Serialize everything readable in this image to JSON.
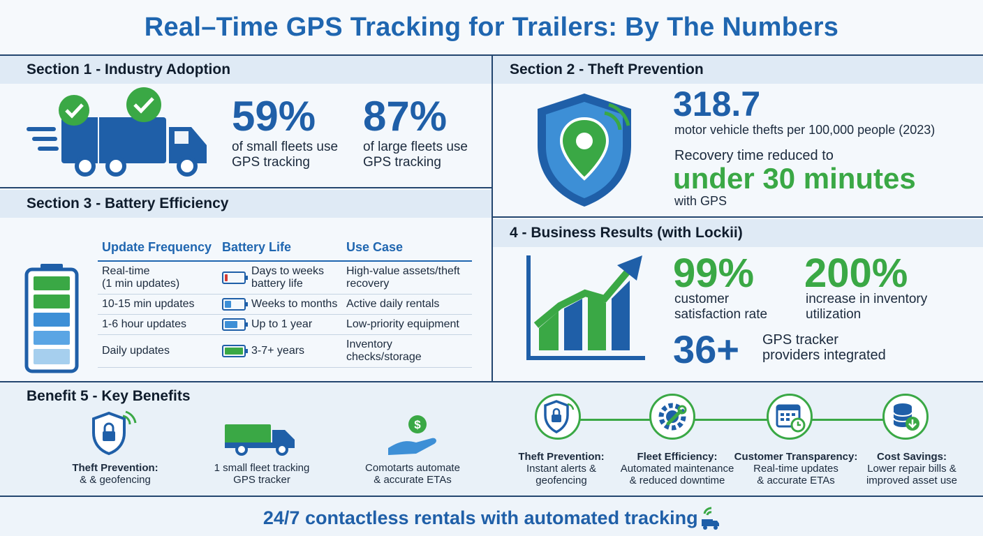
{
  "title": "Real–Time GPS Tracking for Trailers: By The Numbers",
  "section1": {
    "header": "Section 1 - Industry Adoption",
    "stat1": {
      "value": "59%",
      "line1": "of small fleets use",
      "line2": "GPS tracking"
    },
    "stat2": {
      "value": "87%",
      "line1": "of large fleets use",
      "line2": "GPS tracking"
    }
  },
  "section2": {
    "header": "Section 2 - Theft Prevention",
    "stat_value": "318.7",
    "stat_text": "motor vehicle thefts per 100,000 people (2023)",
    "recovery_line1": "Recovery time reduced to",
    "recovery_big": "under 30 minutes",
    "recovery_line2": "with GPS"
  },
  "section3": {
    "header": "Section 3 - Battery Efficiency",
    "columns": [
      "Update Frequency",
      "Battery Life",
      "Use Case"
    ],
    "rows": [
      {
        "freq1": "Real-time",
        "freq2": "(1 min updates)",
        "life1": "Days to weeks",
        "life2": "battery life",
        "use1": "High-value assets/theft",
        "use2": "recovery",
        "level": 0.15,
        "color": "#d43a32"
      },
      {
        "freq1": "10-15 min updates",
        "freq2": "",
        "life1": "Weeks to months",
        "life2": "",
        "use1": "Active daily rentals",
        "use2": "",
        "level": 0.35,
        "color": "#3d8fd6"
      },
      {
        "freq1": "1-6 hour updates",
        "freq2": "",
        "life1": "Up to 1 year",
        "life2": "",
        "use1": "Low-priority equipment",
        "use2": "",
        "level": 0.7,
        "color": "#3d8fd6"
      },
      {
        "freq1": "Daily updates",
        "freq2": "",
        "life1": "3-7+ years",
        "life2": "",
        "use1": "Inventory checks/storage",
        "use2": "",
        "level": 1.0,
        "color": "#3aa845"
      }
    ]
  },
  "section4": {
    "header": "4 - Business Results (with Lockii)",
    "stat1": {
      "value": "99%",
      "line1": "customer",
      "line2": "satisfaction rate"
    },
    "stat2": {
      "value": "200%",
      "line1": "increase in inventory",
      "line2": "utilization"
    },
    "stat3": {
      "value": "36+",
      "line1": "GPS tracker",
      "line2": "providers integrated"
    }
  },
  "section5": {
    "header": "Benefit 5 - Key Benefits",
    "left": [
      {
        "line1": "Theft Prevention:",
        "line2": "& & geofencing",
        "icon": "shield-lock-icon"
      },
      {
        "line1": "1 small fleet tracking",
        "line2": "GPS tracker",
        "icon": "truck-icon"
      },
      {
        "line1": "Comotarts automate",
        "line2": "& accurate ETAs",
        "icon": "hand-dollar-icon"
      }
    ],
    "right": [
      {
        "title": "Theft Prevention:",
        "line1": "Instant alerts &",
        "line2": "geofencing",
        "icon": "shield-lock-icon"
      },
      {
        "title": "Fleet Efficiency:",
        "line1": "Automated maintenance",
        "line2": "& reduced downtime",
        "icon": "gear-wrench-icon"
      },
      {
        "title": "Customer Transparency:",
        "line1": "Real-time updates",
        "line2": "& accurate ETAs",
        "icon": "calendar-clock-icon"
      },
      {
        "title": "Cost Savings:",
        "line1": "Lower repair bills &",
        "line2": "improved asset use",
        "icon": "coins-arrow-icon"
      }
    ]
  },
  "footer": "24/7 contactless rentals with automated tracking"
}
